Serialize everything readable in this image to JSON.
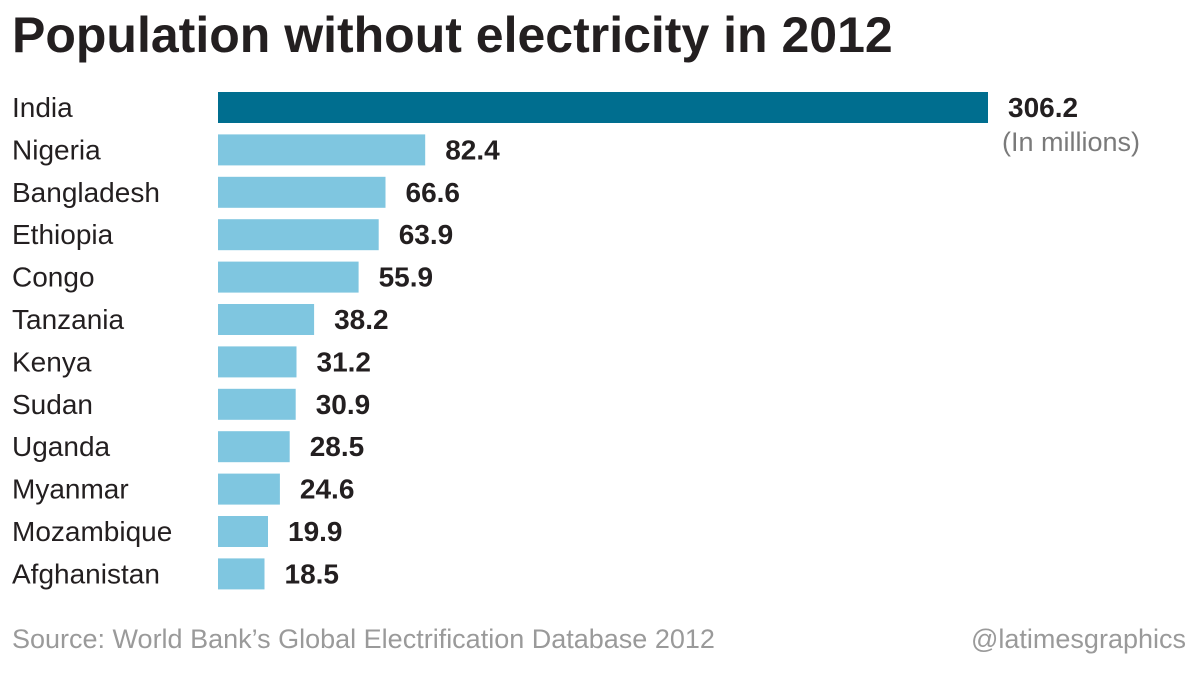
{
  "chart_data": {
    "type": "bar",
    "orientation": "horizontal",
    "title": "Population without electricity in 2012",
    "unit_note": "(In millions)",
    "categories": [
      "India",
      "Nigeria",
      "Bangladesh",
      "Ethiopia",
      "Congo",
      "Tanzania",
      "Kenya",
      "Sudan",
      "Uganda",
      "Myanmar",
      "Mozambique",
      "Afghanistan"
    ],
    "values": [
      306.2,
      82.4,
      66.6,
      63.9,
      55.9,
      38.2,
      31.2,
      30.9,
      28.5,
      24.6,
      19.9,
      18.5
    ],
    "value_labels": [
      "306.2",
      "82.4",
      "66.6",
      "63.9",
      "55.9",
      "38.2",
      "31.2",
      "30.9",
      "28.5",
      "24.6",
      "19.9",
      "18.5"
    ],
    "highlight_index": 0,
    "colors": {
      "highlight": "#006e8f",
      "bar": "#7fc6e0"
    },
    "xlim": [
      0,
      306.2
    ],
    "grid": false,
    "legend": "none"
  },
  "footer": {
    "source": "Source: World Bank’s Global Electrification Database 2012",
    "credit": "@latimesgraphics"
  }
}
